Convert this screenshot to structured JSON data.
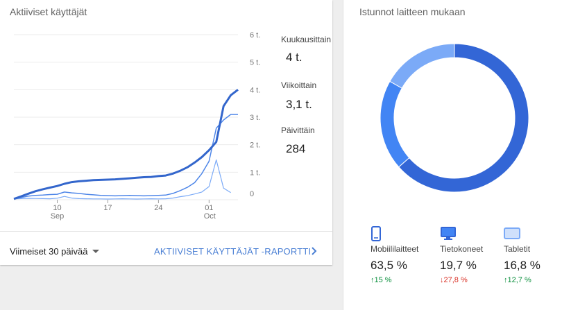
{
  "active_users": {
    "title": "Aktiiviset käyttäjät",
    "stats": [
      {
        "label": "Kuukausittain",
        "value": "4 t."
      },
      {
        "label": "Viikoittain",
        "value": "3,1 t."
      },
      {
        "label": "Päivittäin",
        "value": "284"
      }
    ],
    "range_selector": "Viimeiset 30 päivää",
    "report_link": "AKTIIVISET KÄYTTÄJÄT -RAPORTTI"
  },
  "chart_data": {
    "type": "line",
    "y_ticks": [
      "0",
      "1 t.",
      "2 t.",
      "3 t.",
      "4 t.",
      "5 t.",
      "6 t."
    ],
    "y_range": [
      0,
      6000
    ],
    "x_ticks": [
      {
        "day": 10,
        "label": "10",
        "sublabel": "Sep"
      },
      {
        "day": 17,
        "label": "17",
        "sublabel": ""
      },
      {
        "day": 24,
        "label": "24",
        "sublabel": ""
      },
      {
        "day": 31,
        "label": "01",
        "sublabel": "Oct"
      }
    ],
    "x_range": [
      4,
      35
    ],
    "series": [
      {
        "key": "monthly",
        "color": "#3366cc",
        "points": [
          [
            4,
            30
          ],
          [
            5,
            120
          ],
          [
            6,
            220
          ],
          [
            7,
            310
          ],
          [
            8,
            380
          ],
          [
            9,
            440
          ],
          [
            10,
            500
          ],
          [
            11,
            580
          ],
          [
            12,
            640
          ],
          [
            13,
            670
          ],
          [
            14,
            690
          ],
          [
            15,
            710
          ],
          [
            16,
            720
          ],
          [
            17,
            730
          ],
          [
            18,
            740
          ],
          [
            19,
            760
          ],
          [
            20,
            780
          ],
          [
            21,
            800
          ],
          [
            22,
            820
          ],
          [
            23,
            830
          ],
          [
            24,
            860
          ],
          [
            25,
            880
          ],
          [
            26,
            950
          ],
          [
            27,
            1050
          ],
          [
            28,
            1180
          ],
          [
            29,
            1350
          ],
          [
            30,
            1550
          ],
          [
            31,
            1800
          ],
          [
            32,
            2100
          ],
          [
            33,
            3400
          ],
          [
            34,
            3800
          ],
          [
            35,
            4000
          ]
        ]
      },
      {
        "key": "weekly",
        "color": "#4e86e8",
        "points": [
          [
            4,
            30
          ],
          [
            5,
            80
          ],
          [
            6,
            130
          ],
          [
            7,
            160
          ],
          [
            8,
            170
          ],
          [
            9,
            190
          ],
          [
            10,
            200
          ],
          [
            11,
            280
          ],
          [
            12,
            250
          ],
          [
            13,
            230
          ],
          [
            14,
            200
          ],
          [
            15,
            180
          ],
          [
            16,
            160
          ],
          [
            17,
            150
          ],
          [
            18,
            140
          ],
          [
            19,
            150
          ],
          [
            20,
            160
          ],
          [
            21,
            150
          ],
          [
            22,
            140
          ],
          [
            23,
            150
          ],
          [
            24,
            160
          ],
          [
            25,
            170
          ],
          [
            26,
            230
          ],
          [
            27,
            330
          ],
          [
            28,
            450
          ],
          [
            29,
            620
          ],
          [
            30,
            950
          ],
          [
            31,
            1400
          ],
          [
            32,
            2600
          ],
          [
            33,
            2900
          ],
          [
            34,
            3100
          ],
          [
            35,
            3100
          ]
        ]
      },
      {
        "key": "daily",
        "color": "#7baaf7",
        "points": [
          [
            4,
            30
          ],
          [
            5,
            40
          ],
          [
            6,
            50
          ],
          [
            7,
            45
          ],
          [
            8,
            40
          ],
          [
            9,
            35
          ],
          [
            10,
            55
          ],
          [
            11,
            120
          ],
          [
            12,
            60
          ],
          [
            13,
            40
          ],
          [
            14,
            35
          ],
          [
            15,
            30
          ],
          [
            16,
            30
          ],
          [
            17,
            25
          ],
          [
            18,
            30
          ],
          [
            19,
            35
          ],
          [
            20,
            30
          ],
          [
            21,
            25
          ],
          [
            22,
            30
          ],
          [
            23,
            35
          ],
          [
            24,
            30
          ],
          [
            25,
            35
          ],
          [
            26,
            60
          ],
          [
            27,
            110
          ],
          [
            28,
            150
          ],
          [
            29,
            210
          ],
          [
            30,
            280
          ],
          [
            31,
            480
          ],
          [
            32,
            1450
          ],
          [
            33,
            420
          ],
          [
            34,
            260
          ]
        ]
      }
    ]
  },
  "devices": {
    "title": "Istunnot laitteen mukaan",
    "chart_data": {
      "type": "pie",
      "slices": [
        {
          "label": "Mobiililaitteet",
          "value": 63.5,
          "color": "#3366d6"
        },
        {
          "label": "Tietokoneet",
          "value": 19.7,
          "color": "#4285f4"
        },
        {
          "label": "Tabletit",
          "value": 16.8,
          "color": "#7baaf7"
        }
      ]
    },
    "items": [
      {
        "name": "Mobiililaitteet",
        "percent": "63,5 %",
        "change": "15 %",
        "direction": "up",
        "icon": "smartphone-icon"
      },
      {
        "name": "Tietokoneet",
        "percent": "19,7 %",
        "change": "27,8 %",
        "direction": "down",
        "icon": "desktop-icon"
      },
      {
        "name": "Tabletit",
        "percent": "16,8 %",
        "change": "12,7 %",
        "direction": "up",
        "icon": "tablet-icon"
      }
    ],
    "arrows": {
      "up": "↑",
      "down": "↓"
    }
  }
}
